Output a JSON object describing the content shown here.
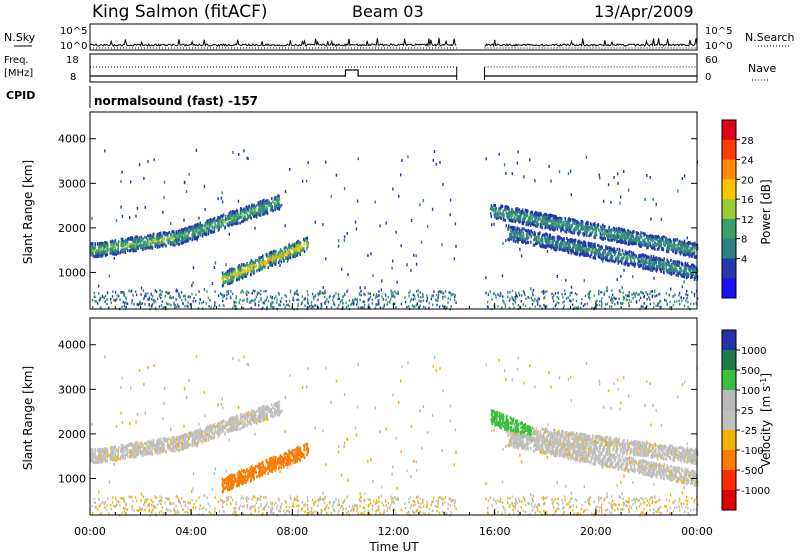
{
  "header": {
    "title": "King Salmon (fitACF)",
    "beam": "Beam 03",
    "date": "13/Apr/2009"
  },
  "strip_labels": {
    "nsky": "N.Sky",
    "nsearch": "N.Search",
    "freq": "Freq.",
    "freq_unit": "[MHz]",
    "nave": "Nave",
    "cpid": "CPID",
    "cpid_text": "normalsound (fast) -157"
  },
  "strip_ticks": {
    "noise_top": "10^5",
    "noise_bottom": "10^0",
    "freq_top": "18",
    "freq_bottom": "8",
    "nave_top": "60",
    "nave_bottom": "0"
  },
  "power_scale": {
    "label": "Power [dB]",
    "ticks": [
      "28",
      "24",
      "20",
      "16",
      "12",
      "8",
      "4"
    ],
    "colors": [
      "#e0001a",
      "#ff3a00",
      "#ff8a00",
      "#ffc400",
      "#9ccb3a",
      "#3a9e6a",
      "#2f7f86",
      "#223aa8",
      "#1a10ff"
    ]
  },
  "velocity_scale": {
    "label": "Velocity",
    "unit": "[m s",
    "unit_sup": "-1",
    "unit_end": "]",
    "ticks": [
      "1000",
      "500",
      "100",
      "25",
      "-25",
      "-100",
      "-500",
      "-1000"
    ],
    "colors": [
      "#2233aa",
      "#1e7a4a",
      "#3cbe3c",
      "#b8b8b8",
      "#c0c0c0",
      "#f2b400",
      "#ff7a00",
      "#ff2a00",
      "#dd0000"
    ]
  },
  "chart_data": [
    {
      "type": "heatmap",
      "name": "power",
      "ylabel": "Slant Range [km]",
      "xlim": [
        "00:00",
        "24:00"
      ],
      "ylim": [
        180,
        4600
      ],
      "y_ticks": [
        1000,
        2000,
        3000,
        4000
      ],
      "x_ticks": [
        "00:00",
        "04:00",
        "08:00",
        "12:00",
        "16:00",
        "20:00",
        "00:00"
      ],
      "data_gap_hours": [
        14.5,
        15.6
      ],
      "echo_bands": [
        {
          "t_start": 0.0,
          "t_end": 3.5,
          "range_start": 1500,
          "range_end": 1800,
          "peak_db": 14
        },
        {
          "t_start": 3.5,
          "t_end": 7.5,
          "range_start": 1800,
          "range_end": 2600,
          "peak_db": 12
        },
        {
          "t_start": 5.2,
          "t_end": 8.6,
          "range_start": 850,
          "range_end": 1650,
          "peak_db": 20
        },
        {
          "t_start": 15.8,
          "t_end": 24.0,
          "range_start": 2400,
          "range_end": 1500,
          "peak_db": 10
        },
        {
          "t_start": 16.5,
          "t_end": 24.0,
          "range_start": 1900,
          "range_end": 1000,
          "peak_db": 8
        }
      ]
    },
    {
      "type": "heatmap",
      "name": "velocity",
      "ylabel": "Slant Range [km]",
      "xlabel": "Time UT",
      "xlim": [
        "00:00",
        "24:00"
      ],
      "ylim": [
        180,
        4600
      ],
      "y_ticks": [
        1000,
        2000,
        3000,
        4000
      ],
      "x_ticks": [
        "00:00",
        "04:00",
        "08:00",
        "12:00",
        "16:00",
        "20:00",
        "00:00"
      ],
      "data_gap_hours": [
        14.5,
        15.6
      ],
      "echo_bands": [
        {
          "t_start": 0.0,
          "t_end": 3.5,
          "range_start": 1500,
          "range_end": 1800,
          "velocity": 0
        },
        {
          "t_start": 3.5,
          "t_end": 7.5,
          "range_start": 1800,
          "range_end": 2600,
          "velocity": 0
        },
        {
          "t_start": 5.2,
          "t_end": 8.6,
          "range_start": 850,
          "range_end": 1650,
          "velocity": -300
        },
        {
          "t_start": 15.8,
          "t_end": 17.5,
          "range_start": 2400,
          "range_end": 2000,
          "velocity": 200
        },
        {
          "t_start": 17.5,
          "t_end": 24.0,
          "range_start": 2000,
          "range_end": 1500,
          "velocity": 0
        },
        {
          "t_start": 16.5,
          "t_end": 24.0,
          "range_start": 1900,
          "range_end": 1000,
          "velocity": 0
        }
      ]
    }
  ]
}
